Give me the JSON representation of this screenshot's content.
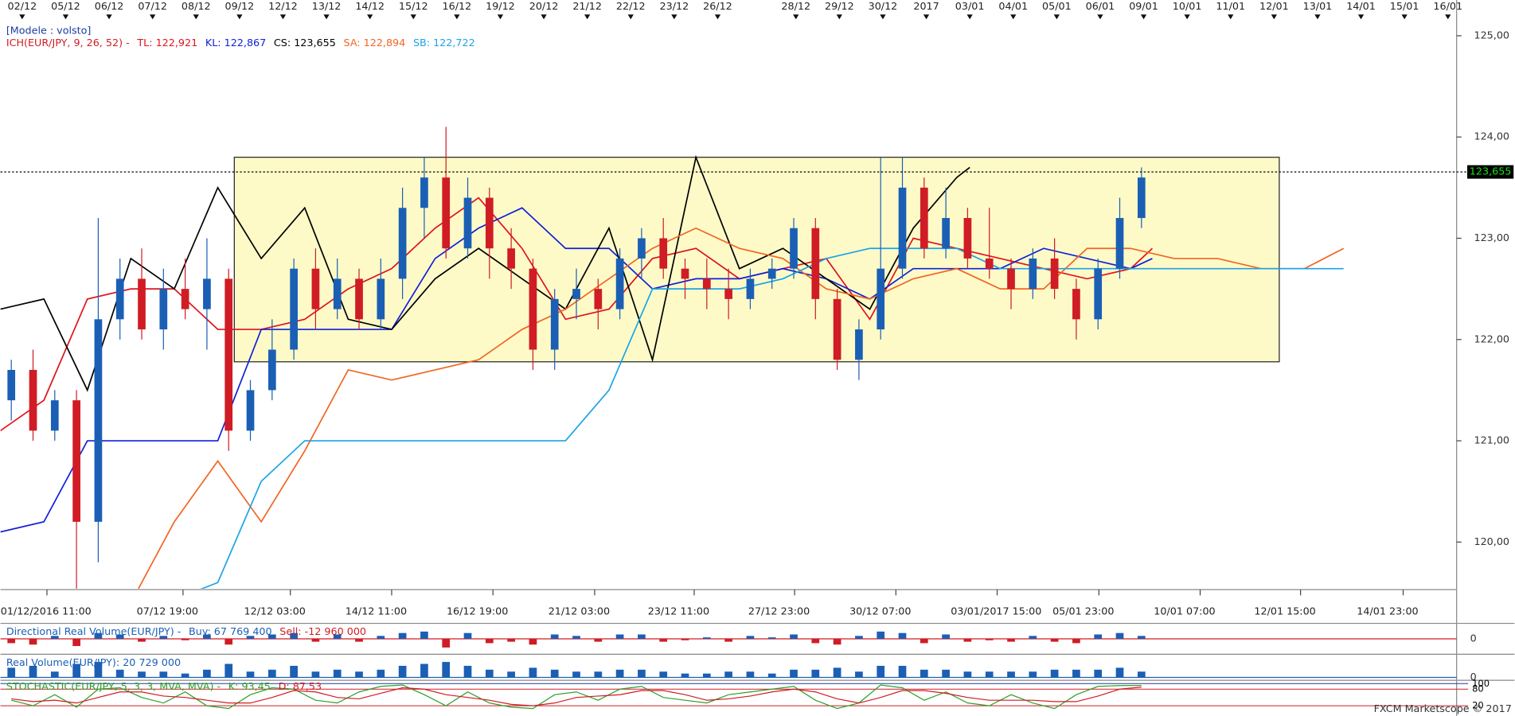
{
  "header": {
    "model": "[Modele : volsto]"
  },
  "chart_data": [
    {
      "type": "candlestick",
      "legend_prefix": "ICH(EUR/JPY, 9, 26, 52) -",
      "up_color": "#1b5fb5",
      "down_color": "#d01c24",
      "x": [
        0.25,
        0.75,
        1.25,
        1.75,
        2.25,
        2.75,
        3.25,
        3.75,
        4.25,
        4.75,
        5.25,
        5.75,
        6.25,
        6.75,
        7.25,
        7.75,
        8.25,
        8.75,
        9.25,
        9.75,
        10.25,
        10.75,
        11.25,
        11.75,
        12.25,
        12.75,
        13.25,
        13.75,
        14.25,
        14.75,
        15.25,
        15.75,
        16.25,
        16.75,
        17.25,
        17.75,
        18.25,
        18.75,
        19.25,
        19.75,
        20.25,
        20.75,
        21.25,
        21.75,
        22.25,
        22.75,
        23.25,
        23.75,
        24.25,
        24.75,
        25.25,
        25.75,
        26.25
      ],
      "open": [
        121.4,
        121.7,
        121.1,
        121.4,
        120.2,
        122.2,
        122.6,
        122.1,
        122.5,
        122.3,
        122.6,
        121.1,
        121.5,
        121.9,
        122.7,
        122.3,
        122.6,
        122.2,
        122.6,
        123.3,
        123.6,
        122.9,
        123.4,
        122.9,
        122.7,
        121.9,
        122.4,
        122.5,
        122.3,
        122.8,
        123.0,
        122.7,
        122.6,
        122.5,
        122.4,
        122.6,
        122.7,
        123.1,
        122.4,
        121.8,
        122.1,
        122.7,
        123.5,
        122.9,
        123.2,
        122.8,
        122.7,
        122.5,
        122.8,
        122.5,
        122.2,
        122.7,
        123.2
      ],
      "high": [
        121.8,
        121.9,
        121.5,
        121.5,
        123.2,
        122.8,
        122.9,
        122.7,
        122.8,
        123.0,
        122.7,
        121.6,
        122.2,
        122.8,
        122.9,
        122.8,
        122.7,
        122.8,
        123.5,
        123.8,
        124.1,
        123.6,
        123.5,
        123.1,
        122.8,
        122.5,
        122.7,
        122.6,
        122.9,
        123.1,
        123.2,
        122.8,
        122.8,
        122.7,
        122.7,
        122.8,
        123.2,
        123.2,
        122.5,
        122.2,
        123.8,
        123.8,
        123.6,
        123.5,
        123.3,
        123.3,
        122.8,
        122.9,
        123.0,
        122.6,
        122.8,
        123.4,
        123.7
      ],
      "low": [
        121.2,
        121.0,
        121.0,
        119.5,
        119.8,
        122.0,
        122.0,
        121.9,
        122.2,
        121.9,
        120.9,
        121.0,
        121.4,
        121.8,
        122.1,
        122.2,
        122.1,
        122.1,
        122.4,
        123.0,
        122.8,
        122.8,
        122.6,
        122.5,
        121.7,
        121.7,
        122.2,
        122.1,
        122.2,
        122.6,
        122.6,
        122.4,
        122.3,
        122.2,
        122.3,
        122.5,
        122.6,
        122.2,
        121.7,
        121.6,
        122.0,
        122.6,
        122.8,
        122.8,
        122.7,
        122.6,
        122.3,
        122.4,
        122.4,
        122.0,
        122.1,
        122.6,
        123.1
      ],
      "close": [
        121.7,
        121.1,
        121.4,
        120.2,
        122.2,
        122.6,
        122.1,
        122.5,
        122.3,
        122.6,
        121.1,
        121.5,
        121.9,
        122.7,
        122.3,
        122.6,
        122.2,
        122.6,
        123.3,
        123.6,
        122.9,
        123.4,
        122.9,
        122.7,
        121.9,
        122.4,
        122.5,
        122.3,
        122.8,
        123.0,
        122.7,
        122.6,
        122.5,
        122.4,
        122.6,
        122.7,
        123.1,
        122.4,
        121.8,
        122.1,
        122.7,
        123.5,
        122.9,
        123.2,
        122.8,
        122.7,
        122.5,
        122.8,
        122.5,
        122.2,
        122.7,
        123.2,
        123.6
      ],
      "series": [
        {
          "name": "TL: 122,921",
          "color": "#e0131d",
          "x": [
            0,
            1,
            2,
            3,
            4,
            5,
            6,
            7,
            8,
            9,
            10,
            11,
            12,
            13,
            14,
            15,
            16,
            17,
            18,
            19,
            20,
            21,
            22,
            23,
            24,
            25,
            26,
            26.5
          ],
          "values": [
            121.1,
            121.4,
            122.4,
            122.5,
            122.5,
            122.1,
            122.1,
            122.2,
            122.5,
            122.7,
            123.1,
            123.4,
            122.9,
            122.2,
            122.3,
            122.8,
            122.9,
            122.6,
            122.7,
            122.8,
            122.2,
            123.0,
            122.9,
            122.8,
            122.7,
            122.6,
            122.7,
            122.9
          ]
        },
        {
          "name": "KL: 122,867",
          "color": "#1020d8",
          "x": [
            0,
            1,
            2,
            3,
            4,
            5,
            6,
            7,
            8,
            9,
            10,
            11,
            12,
            13,
            14,
            15,
            16,
            17,
            18,
            19,
            20,
            21,
            22,
            23,
            24,
            25,
            26,
            26.5
          ],
          "values": [
            120.1,
            120.2,
            121.0,
            121.0,
            121.0,
            121.0,
            122.1,
            122.1,
            122.1,
            122.1,
            122.8,
            123.1,
            123.3,
            122.9,
            122.9,
            122.5,
            122.6,
            122.6,
            122.7,
            122.6,
            122.4,
            122.7,
            122.7,
            122.7,
            122.9,
            122.8,
            122.7,
            122.8
          ]
        },
        {
          "name": "CS: 123,655",
          "color": "#000000",
          "x": [
            0,
            1,
            2,
            3,
            4,
            5,
            6,
            7,
            8,
            9,
            10,
            11,
            12,
            13,
            14,
            15,
            16,
            17,
            18,
            19,
            20,
            21,
            22,
            22.3
          ],
          "values": [
            122.3,
            122.4,
            121.5,
            122.8,
            122.5,
            123.5,
            122.8,
            123.3,
            122.2,
            122.1,
            122.6,
            122.9,
            122.6,
            122.3,
            123.1,
            121.8,
            123.8,
            122.7,
            122.9,
            122.6,
            122.3,
            123.1,
            123.6,
            123.7
          ]
        },
        {
          "name": "SA: 122,894",
          "color": "#f26522",
          "x": [
            3,
            4,
            5,
            6,
            7,
            8,
            9,
            10,
            11,
            12,
            13,
            14,
            15,
            16,
            17,
            18,
            19,
            20,
            21,
            22,
            23,
            24,
            25,
            26,
            27,
            28,
            29,
            30,
            30.9
          ],
          "values": [
            119.4,
            120.2,
            120.8,
            120.2,
            120.9,
            121.7,
            121.6,
            121.7,
            121.8,
            122.1,
            122.3,
            122.6,
            122.9,
            123.1,
            122.9,
            122.8,
            122.5,
            122.4,
            122.6,
            122.7,
            122.5,
            122.5,
            122.9,
            122.9,
            122.8,
            122.8,
            122.7,
            122.7,
            122.9
          ]
        },
        {
          "name": "SB: 122,722",
          "color": "#1aa3e8",
          "x": [
            4.4,
            5,
            6,
            7,
            8,
            9,
            10,
            11,
            12,
            13,
            14,
            14.5,
            15,
            16,
            17,
            18,
            19,
            20,
            21,
            22,
            23,
            24,
            25,
            26,
            27,
            28,
            29,
            30,
            30.9
          ],
          "values": [
            119.5,
            119.6,
            120.6,
            121.0,
            121.0,
            121.0,
            121.0,
            121.0,
            121.0,
            121.0,
            121.5,
            122.0,
            122.5,
            122.5,
            122.5,
            122.6,
            122.8,
            122.9,
            122.9,
            122.9,
            122.7,
            122.7,
            122.7,
            122.7,
            122.7,
            122.7,
            122.7,
            122.7,
            122.7
          ]
        }
      ],
      "rectangle": {
        "x": [
          5.38,
          29.42
        ],
        "y": [
          121.78,
          123.8
        ],
        "color": "#fdfac8"
      },
      "current_price": {
        "value": 123.655,
        "label": "123,655"
      },
      "xlim": [
        0,
        33.5
      ],
      "ylim": [
        119.54,
        125.21
      ],
      "yticks": [
        {
          "value": 120,
          "label": "120,00"
        },
        {
          "value": 121,
          "label": "121,00"
        },
        {
          "value": 122,
          "label": "122,00"
        },
        {
          "value": 123,
          "label": "123,00"
        },
        {
          "value": 124,
          "label": "124,00"
        },
        {
          "value": 125,
          "label": "125,00"
        }
      ],
      "top_xticks": [
        {
          "value": 0.5,
          "label": "02/12"
        },
        {
          "value": 1.5,
          "label": "05/12"
        },
        {
          "value": 2.5,
          "label": "06/12"
        },
        {
          "value": 3.5,
          "label": "07/12"
        },
        {
          "value": 4.5,
          "label": "08/12"
        },
        {
          "value": 5.5,
          "label": "09/12"
        },
        {
          "value": 6.5,
          "label": "12/12"
        },
        {
          "value": 7.5,
          "label": "13/12"
        },
        {
          "value": 8.5,
          "label": "14/12"
        },
        {
          "value": 9.5,
          "label": "15/12"
        },
        {
          "value": 10.5,
          "label": "16/12"
        },
        {
          "value": 11.5,
          "label": "19/12"
        },
        {
          "value": 12.5,
          "label": "20/12"
        },
        {
          "value": 13.5,
          "label": "21/12"
        },
        {
          "value": 14.5,
          "label": "22/12"
        },
        {
          "value": 15.5,
          "label": "23/12"
        },
        {
          "value": 16.5,
          "label": "26/12"
        },
        {
          "value": 18.3,
          "label": "28/12"
        },
        {
          "value": 19.3,
          "label": "29/12"
        },
        {
          "value": 20.3,
          "label": "30/12"
        },
        {
          "value": 21.3,
          "label": "2017"
        },
        {
          "value": 22.3,
          "label": "03/01"
        },
        {
          "value": 23.3,
          "label": "04/01"
        },
        {
          "value": 24.3,
          "label": "05/01"
        },
        {
          "value": 25.3,
          "label": "06/01"
        },
        {
          "value": 26.3,
          "label": "09/01"
        },
        {
          "value": 27.3,
          "label": "10/01"
        },
        {
          "value": 28.3,
          "label": "11/01"
        },
        {
          "value": 29.3,
          "label": "12/01"
        },
        {
          "value": 30.3,
          "label": "13/01"
        },
        {
          "value": 31.3,
          "label": "14/01"
        },
        {
          "value": 32.3,
          "label": "15/01"
        },
        {
          "value": 33.3,
          "label": "16/01"
        }
      ],
      "xticks": [
        {
          "value": 1.07,
          "label": "01/12/2016 11:00"
        },
        {
          "value": 4.2,
          "label": "07/12 19:00"
        },
        {
          "value": 6.67,
          "label": "12/12 03:00"
        },
        {
          "value": 9.0,
          "label": "14/12 11:00"
        },
        {
          "value": 11.33,
          "label": "16/12 19:00"
        },
        {
          "value": 13.67,
          "label": "21/12 03:00"
        },
        {
          "value": 15.96,
          "label": "23/12 11:00"
        },
        {
          "value": 18.27,
          "label": "27/12 23:00"
        },
        {
          "value": 20.6,
          "label": "30/12 07:00"
        },
        {
          "value": 22.93,
          "label": "03/01/2017 15:00"
        },
        {
          "value": 25.27,
          "label": "05/01 23:00"
        },
        {
          "value": 27.6,
          "label": "10/01 07:00"
        },
        {
          "value": 29.91,
          "label": "12/01 15:00"
        },
        {
          "value": 32.27,
          "label": "14/01 23:00"
        }
      ]
    },
    {
      "type": "bar",
      "title": "Directional Real Volume(EUR/JPY) -",
      "buy": "Buy: 67 769 400",
      "sell": "Sell: -12 960 000",
      "up_color": "#1b5fb5",
      "down_color": "#d01c24",
      "values": [
        -3,
        -4,
        2,
        -5,
        4,
        3,
        -2,
        2,
        -1,
        3,
        -4,
        2,
        3,
        4,
        -2,
        3,
        -2,
        2,
        4,
        5,
        -6,
        4,
        -3,
        -2,
        -4,
        3,
        2,
        -2,
        3,
        3,
        -2,
        -1,
        1,
        -2,
        2,
        1,
        3,
        -3,
        -4,
        2,
        5,
        4,
        -3,
        3,
        -2,
        -1,
        -2,
        2,
        -2,
        -3,
        3,
        4,
        2
      ],
      "ylim": [
        -8,
        8
      ],
      "yticks": [
        0
      ]
    },
    {
      "type": "bar",
      "title": "Real Volume(EUR/JPY): 20 729 000",
      "color": "#1b5fb5",
      "values": [
        5,
        6,
        3,
        7,
        8,
        4,
        3,
        3,
        2,
        4,
        7,
        3,
        4,
        6,
        3,
        4,
        3,
        4,
        6,
        7,
        8,
        6,
        4,
        3,
        5,
        4,
        3,
        3,
        4,
        4,
        3,
        2,
        2,
        3,
        3,
        2,
        4,
        4,
        5,
        3,
        6,
        6,
        4,
        4,
        3,
        3,
        3,
        3,
        4,
        4,
        4,
        5,
        3
      ],
      "ylim": [
        0,
        10
      ],
      "yticks": [
        0
      ]
    },
    {
      "type": "line",
      "title": "STOCHASTIC(EUR/JPY, 5, 3, 3, MVA, MVA) -",
      "series": [
        {
          "name": "K: 93,45",
          "color": "#2ca02c",
          "values": [
            40,
            20,
            60,
            15,
            80,
            85,
            50,
            30,
            70,
            20,
            10,
            60,
            85,
            80,
            40,
            30,
            70,
            90,
            95,
            60,
            20,
            70,
            30,
            15,
            10,
            60,
            70,
            40,
            80,
            90,
            50,
            40,
            30,
            60,
            70,
            80,
            90,
            40,
            10,
            30,
            95,
            85,
            40,
            70,
            30,
            20,
            60,
            30,
            10,
            60,
            90,
            93,
            93.45
          ]
        },
        {
          "name": "D: 87,53",
          "color": "#d01c24",
          "values": [
            45,
            35,
            40,
            30,
            50,
            70,
            70,
            55,
            50,
            40,
            30,
            30,
            50,
            75,
            70,
            50,
            45,
            65,
            85,
            80,
            60,
            50,
            40,
            25,
            20,
            30,
            50,
            55,
            60,
            75,
            75,
            60,
            40,
            45,
            55,
            70,
            80,
            70,
            45,
            30,
            50,
            75,
            75,
            65,
            50,
            40,
            40,
            40,
            35,
            35,
            55,
            80,
            87.53
          ]
        }
      ],
      "ylim": [
        -10,
        105
      ],
      "yticks": [
        100,
        80,
        20
      ]
    }
  ],
  "footer": "FXCM Marketscope © 2017"
}
